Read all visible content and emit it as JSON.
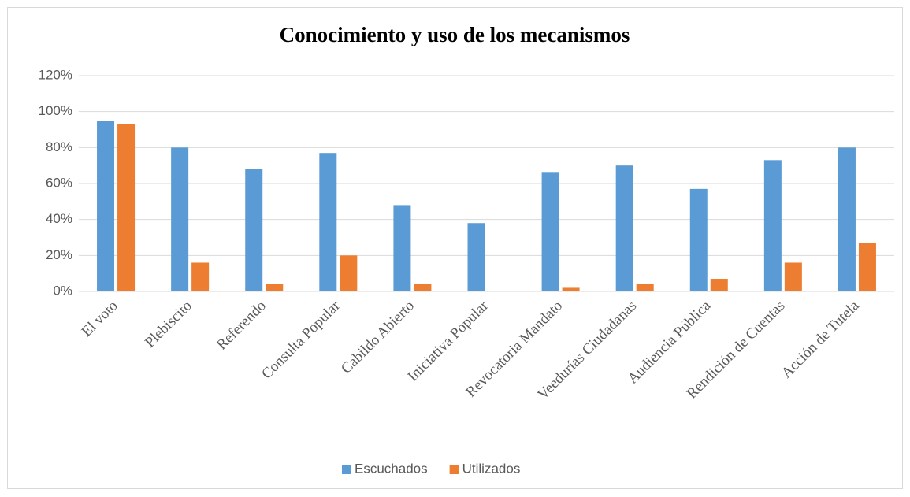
{
  "chart_data": {
    "type": "bar",
    "title": "Conocimiento y uso de los mecanismos",
    "categories": [
      "El voto",
      "Plebiscito",
      "Referendo",
      "Consulta Popular",
      "Cabildo Abierto",
      "Iniciativa Popular",
      "Revocatoria Mandato",
      "Veedurías Ciudadanas",
      "Audiencia Pública",
      "Rendición de Cuentas",
      "Acción de Tutela"
    ],
    "series": [
      {
        "name": "Escuchados",
        "color": "#5b9bd5",
        "values": [
          95,
          80,
          68,
          77,
          48,
          38,
          66,
          70,
          57,
          73,
          80
        ]
      },
      {
        "name": "Utilizados",
        "color": "#ed7d31",
        "values": [
          93,
          16,
          4,
          20,
          4,
          0,
          2,
          4,
          7,
          16,
          27
        ]
      }
    ],
    "ylim": [
      0,
      120
    ],
    "yticks": [
      {
        "value": 0,
        "label": "0%"
      },
      {
        "value": 20,
        "label": "20%"
      },
      {
        "value": 40,
        "label": "40%"
      },
      {
        "value": 60,
        "label": "60%"
      },
      {
        "value": 80,
        "label": "80%"
      },
      {
        "value": 100,
        "label": "100%"
      },
      {
        "value": 120,
        "label": "120%"
      }
    ],
    "grid": true,
    "legend": "bottom"
  }
}
